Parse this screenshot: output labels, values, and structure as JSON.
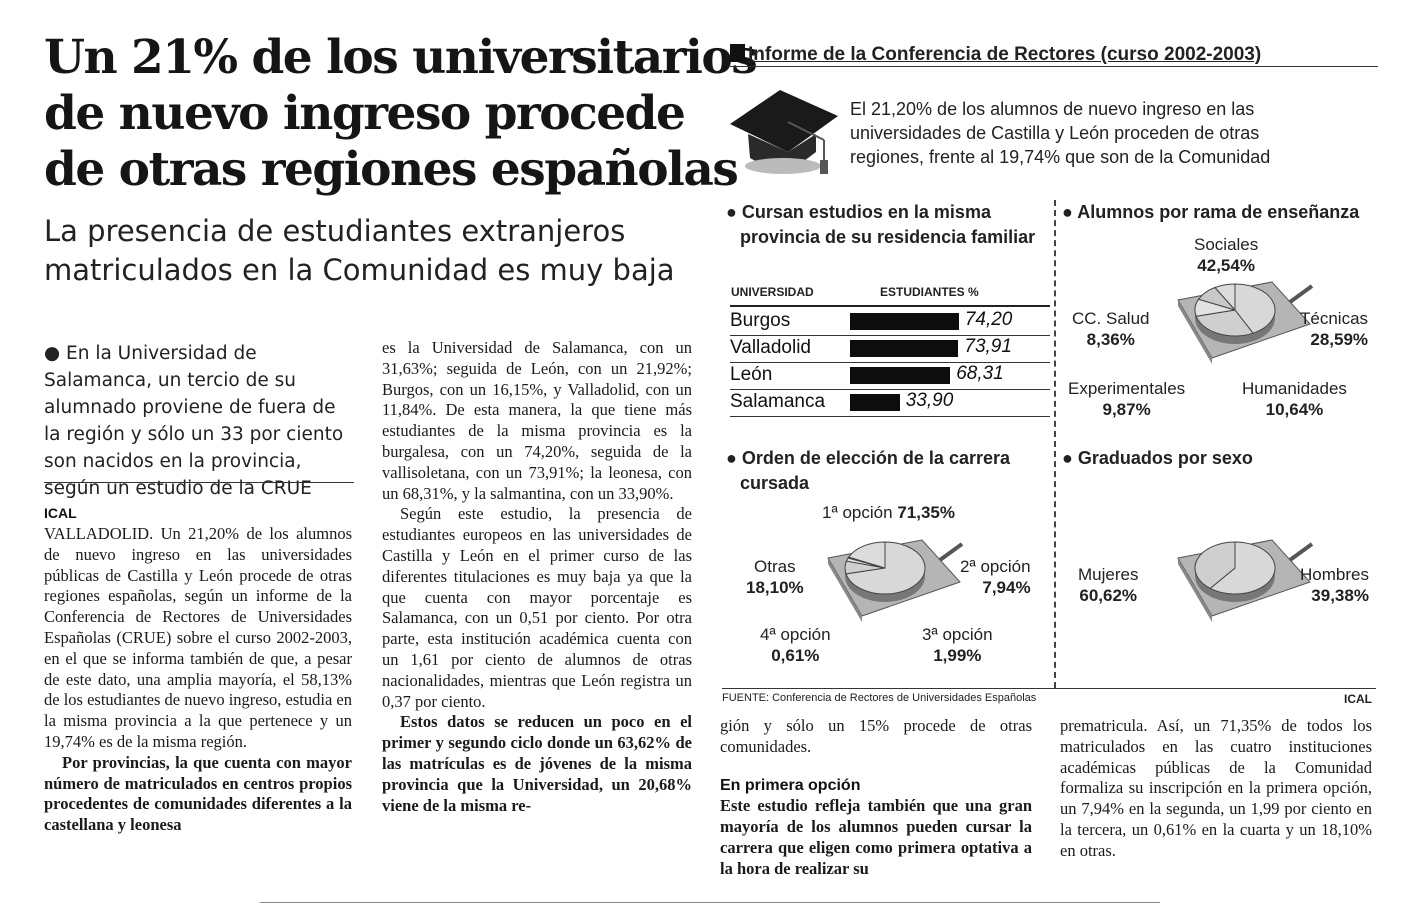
{
  "article": {
    "headline": [
      "Un 21% de los universitarios",
      "de nuevo ingreso procede",
      "de otras regiones españolas"
    ],
    "subheadline": [
      "La presencia de estudiantes extranjeros",
      "matriculados en la Comunidad es muy baja"
    ],
    "lead": "● En la Universidad de Salamanca, un tercio de su alumnado proviene de fuera de la región y sólo un 33 por ciento son nacidos en la provincia, según un estudio de la CRUE",
    "signature": "ICAL",
    "col1_p1": "VALLADOLID. Un 21,20% de los alumnos de nuevo ingreso en las universidades públicas de Castilla y León procede de otras regiones españolas, según un informe de la Conferencia de Rectores de Universidades Españolas (CRUE) sobre el curso 2002-2003, en el que se informa también de que, a pesar de este dato, una amplia mayoría, el 58,13% de los estudiantes de nuevo ingreso, estudia en la misma provincia a la que pertenece y un 19,74% es de la misma región.",
    "col1_p2": "Por provincias, la que cuenta con mayor número de matriculados en centros propios procedentes de comunidades diferentes a la castellana y leonesa",
    "col2_p1": "es la Universidad de Salamanca, con un 31,63%; seguida de León, con un 21,92%; Burgos, con un 16,15%, y Valladolid, con un 11,84%. De esta manera, la que tiene más estudiantes de la misma provincia es la burgalesa, con un 74,20%, seguida de la vallisoletana, con un 73,91%; la leonesa, con un 68,31%, y la salmantina, con un 33,90%.",
    "col2_p2": "Según este estudio, la presencia de estudiantes europeos en las universidades de Castilla y León en el primer curso de las diferentes titulaciones es muy baja ya que la que cuenta con mayor porcentaje es Salamanca, con un 0,51 por ciento. Por otra parte, esta institución académica cuenta con un 1,61 por ciento de alumnos de otras nacionalidades, mientras que León registra un 0,37 por ciento.",
    "col2_p3": "Estos datos se reducen un poco en el primer y segundo ciclo donde un 63,62% de las matrículas es de jóvenes de la misma provincia que la Universidad, un 20,68% viene de la misma re-",
    "col3_p1": "gión y sólo un 15% procede de otras comunidades.",
    "col3_subhead": "En primera opción",
    "col3_p2": "Este estudio refleja también que una gran mayoría de los alumnos pueden cursar la carrera que eligen como primera optativa a la hora de realizar su",
    "col4_p1": "prematricula. Así, un 71,35% de todos los matriculados en las cuatro instituciones académicas públicas de la Comunidad formaliza su inscripción en la primera opción, un 7,94% en la segunda, un 1,99 por ciento en la tercera, un 0,61% en la cuarta y un 18,10% en otras."
  },
  "infographic": {
    "title": "Informe de la Conferencia de Rectores (curso 2002-2003)",
    "intro": [
      "El 21,20% de los alumnos de nuevo ingreso en las",
      "universidades de Castilla y León proceden de otras",
      "regiones, frente al 19,74% que son de la Comunidad"
    ],
    "source": "FUENTE: Conferencia de Rectores de Universidades Españolas",
    "credit": "ICAL",
    "icon": "graduation-cap-icon"
  },
  "chart_data": [
    {
      "type": "bar",
      "title": "Cursan estudios en la misma provincia de su residencia familiar",
      "column_headers": [
        "UNIVERSIDAD",
        "ESTUDIANTES %"
      ],
      "categories": [
        "Burgos",
        "Valladolid",
        "León",
        "Salamanca"
      ],
      "values": [
        74.2,
        73.91,
        68.31,
        33.9
      ],
      "labels": [
        "74,20",
        "73,91",
        "68,31",
        "33,90"
      ]
    },
    {
      "type": "pie",
      "title": "Alumnos por rama de enseñanza",
      "categories": [
        "Sociales",
        "Técnicas",
        "Humanidades",
        "Experimentales",
        "CC. Salud"
      ],
      "values": [
        42.54,
        28.59,
        10.64,
        9.87,
        8.36
      ],
      "labels": [
        "42,54%",
        "28,59%",
        "10,64%",
        "9,87%",
        "8,36%"
      ]
    },
    {
      "type": "pie",
      "title": "Orden de elección de la carrera cursada",
      "categories": [
        "1ª opción",
        "2ª opción",
        "3ª opción",
        "4ª opción",
        "Otras"
      ],
      "values": [
        71.35,
        7.94,
        1.99,
        0.61,
        18.1
      ],
      "labels": [
        "71,35%",
        "7,94%",
        "1,99%",
        "0,61%",
        "18,10%"
      ]
    },
    {
      "type": "pie",
      "title": "Graduados por sexo",
      "categories": [
        "Mujeres",
        "Hombres"
      ],
      "values": [
        60.62,
        39.38
      ],
      "labels": [
        "60,62%",
        "39,38%"
      ]
    }
  ]
}
